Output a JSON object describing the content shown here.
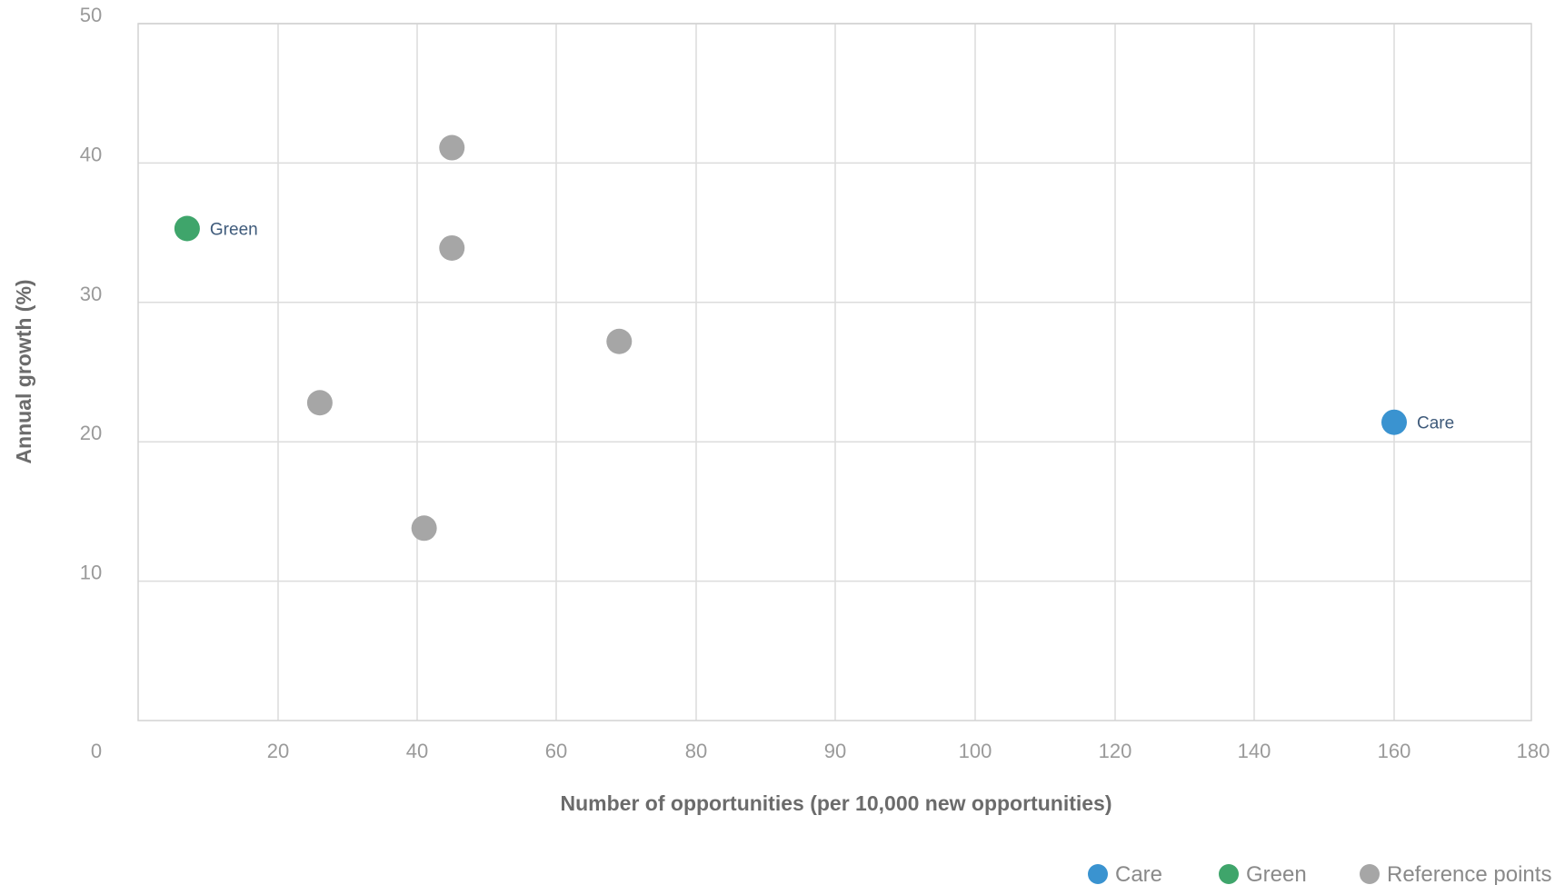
{
  "chart_data": {
    "type": "scatter",
    "xlabel": "Number of opportunities (per 10,000 new opportunities)",
    "ylabel": "Annual growth (%)",
    "x_categories": [
      "0",
      "20",
      "40",
      "60",
      "80",
      "90",
      "100",
      "120",
      "140",
      "160",
      "180"
    ],
    "x_label_text": [
      "0",
      "20",
      "40",
      "60",
      "80",
      "90",
      "100",
      "120",
      "140",
      "160",
      "180"
    ],
    "y_ticks": [
      10,
      20,
      30,
      40,
      50
    ],
    "ylim": [
      0,
      50
    ],
    "grid": true,
    "legend_position": "bottom-right",
    "series": [
      {
        "name": "Care",
        "color": "#3a93d0",
        "points": [
          {
            "x": 160,
            "y": 21.4,
            "label": "Care"
          }
        ]
      },
      {
        "name": "Green",
        "color": "#3fa56b",
        "points": [
          {
            "x": 7,
            "y": 35.3,
            "label": "Green"
          }
        ]
      },
      {
        "name": "Reference points",
        "color": "#a6a6a6",
        "points": [
          {
            "x": 45,
            "y": 41.1
          },
          {
            "x": 45,
            "y": 33.9
          },
          {
            "x": 69,
            "y": 27.2
          },
          {
            "x": 26,
            "y": 22.8
          },
          {
            "x": 41,
            "y": 13.8
          }
        ]
      }
    ]
  }
}
